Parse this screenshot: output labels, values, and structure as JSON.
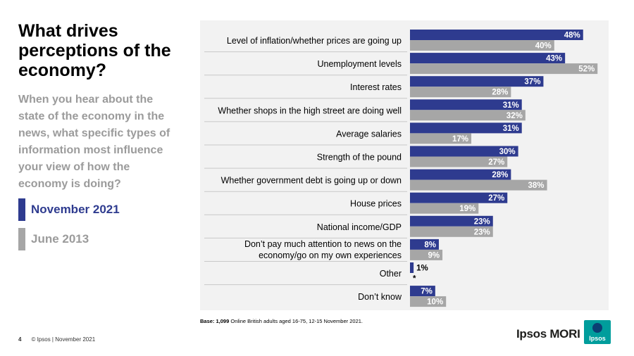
{
  "slide": {
    "title": "What drives perceptions of the economy?",
    "question": "When you hear about the state of the economy in the news, what specific types of information most influence your view of how the economy is doing?",
    "legend": [
      {
        "label": "November 2021",
        "color": "#2e3b8f"
      },
      {
        "label": "June 2013",
        "color": "#a6a6a6"
      }
    ],
    "base_bold": "Base: 1,099",
    "base_text": "Online British adults aged 16-75, 12-15 November 2021.",
    "page_number": "4",
    "copyright": "© Ipsos | November 2021",
    "brand": "Ipsos MORI",
    "logo_text": "Ipsos"
  },
  "chart_data": {
    "type": "bar",
    "orientation": "horizontal",
    "categories": [
      [
        "Level of inflation/whether prices are going up"
      ],
      [
        "Unemployment levels"
      ],
      [
        "Interest rates"
      ],
      [
        "Whether shops in the high street are doing well"
      ],
      [
        "Average salaries"
      ],
      [
        "Strength of the pound"
      ],
      [
        "Whether government debt is going up or down"
      ],
      [
        "House prices"
      ],
      [
        "National income/GDP"
      ],
      [
        "Don’t pay much attention to news on the",
        "economy/go on my own experiences"
      ],
      [
        "Other"
      ],
      [
        "Don’t know"
      ]
    ],
    "series": [
      {
        "name": "November 2021",
        "color": "#2e3b8f",
        "values": [
          48,
          43,
          37,
          31,
          31,
          30,
          28,
          27,
          23,
          8,
          1,
          7
        ],
        "labels": [
          "48%",
          "43%",
          "37%",
          "31%",
          "31%",
          "30%",
          "28%",
          "27%",
          "23%",
          "8%",
          "1%",
          "7%"
        ]
      },
      {
        "name": "June 2013",
        "color": "#a6a6a6",
        "values": [
          40,
          52,
          28,
          32,
          17,
          27,
          38,
          19,
          23,
          9,
          0,
          10
        ],
        "labels": [
          "40%",
          "52%",
          "28%",
          "32%",
          "17%",
          "27%",
          "38%",
          "19%",
          "23%",
          "9%",
          "*",
          "10%"
        ]
      }
    ],
    "units": "%",
    "grid": false,
    "legend_position": "left"
  }
}
